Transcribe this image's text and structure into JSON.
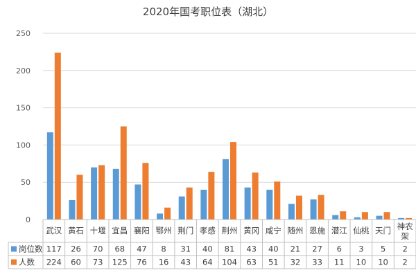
{
  "chart_data": {
    "type": "bar",
    "title": "2020年国考职位表（湖北）",
    "categories": [
      "武汉",
      "黄石",
      "十堰",
      "宜昌",
      "襄阳",
      "鄂州",
      "荆门",
      "孝感",
      "荆州",
      "黄冈",
      "咸宁",
      "随州",
      "恩施",
      "潜江",
      "仙桃",
      "天门",
      "神农\n架"
    ],
    "series": [
      {
        "name": "岗位数",
        "values": [
          117,
          26,
          70,
          68,
          47,
          8,
          31,
          40,
          81,
          43,
          40,
          21,
          27,
          6,
          3,
          5,
          2
        ],
        "color": "#5b9bd5"
      },
      {
        "name": "人数",
        "values": [
          224,
          60,
          73,
          125,
          76,
          16,
          43,
          64,
          104,
          63,
          51,
          32,
          33,
          11,
          10,
          10,
          2
        ],
        "color": "#ed7d31"
      }
    ],
    "ylim": [
      0,
      250
    ],
    "yticks": [
      0,
      50,
      100,
      150,
      200,
      250
    ],
    "grid": true,
    "legend": "table-left"
  }
}
